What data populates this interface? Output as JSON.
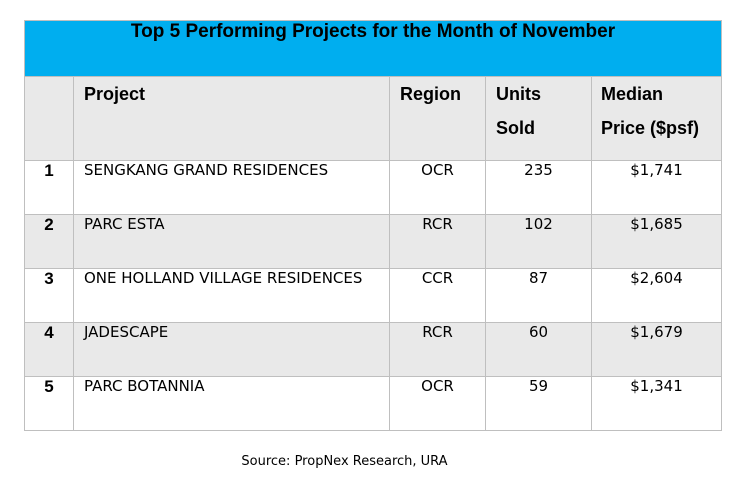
{
  "title": "Top 5 Performing Projects for the Month of November",
  "headers": {
    "project": "Project",
    "region": "Region",
    "units_line1": "Units",
    "units_line2": "Sold",
    "price_line1": "Median",
    "price_line2": "Price ($psf)"
  },
  "rows": [
    {
      "rank": "1",
      "project": "SENGKANG GRAND RESIDENCES",
      "region": "OCR",
      "units": "235",
      "price": "$1,741"
    },
    {
      "rank": "2",
      "project": "PARC ESTA",
      "region": "RCR",
      "units": "102",
      "price": "$1,685"
    },
    {
      "rank": "3",
      "project": "ONE HOLLAND VILLAGE RESIDENCES",
      "region": "CCR",
      "units": "87",
      "price": "$2,604"
    },
    {
      "rank": "4",
      "project": "JADESCAPE",
      "region": "RCR",
      "units": "60",
      "price": "$1,679"
    },
    {
      "rank": "5",
      "project": "PARC BOTANNIA",
      "region": "OCR",
      "units": "59",
      "price": "$1,341"
    }
  ],
  "source": "Source: PropNex Research, URA",
  "colors": {
    "title_bg": "#00aeef",
    "stripe_bg": "#e9e9e9"
  }
}
